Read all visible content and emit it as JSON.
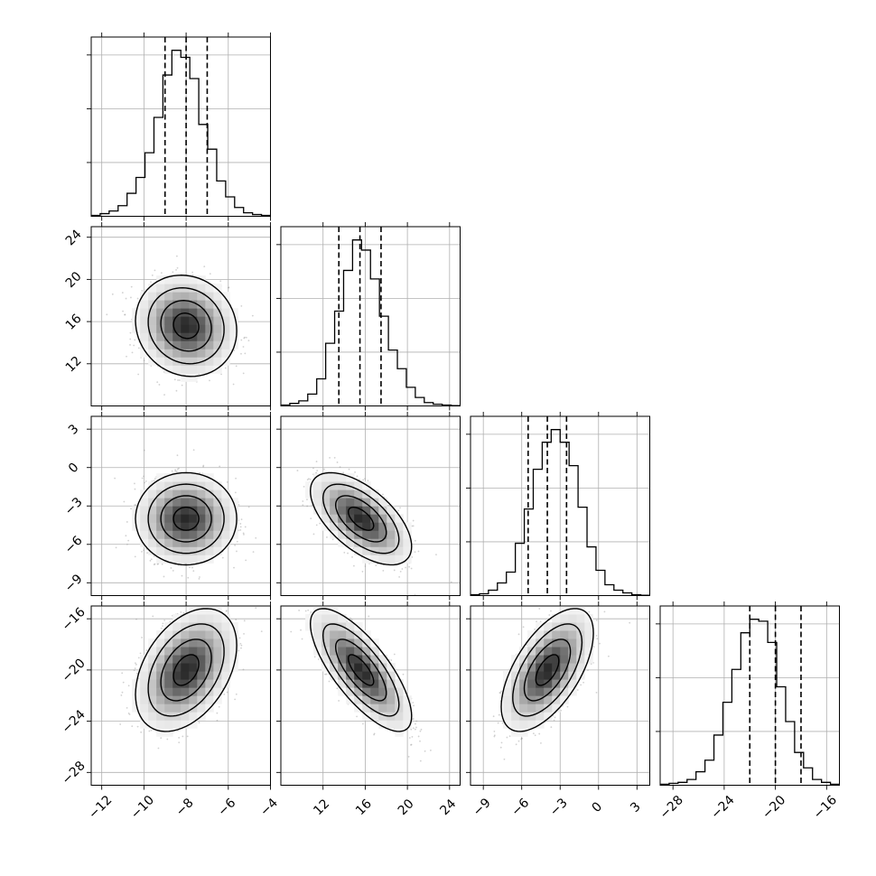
{
  "chart_data": {
    "type": "corner",
    "title": "",
    "grid": true,
    "parameters": [
      {
        "mean": -8.0,
        "sd": 1.0,
        "range": [
          -12.5,
          -4.0
        ],
        "quantiles": [
          -9.0,
          -8.0,
          -7.0
        ],
        "ticks": [
          -12,
          -10,
          -8,
          -6,
          -4
        ],
        "tick_labels": [
          "−12",
          "−10",
          "−8",
          "−6",
          "−4"
        ]
      },
      {
        "mean": 15.6,
        "sd": 2.0,
        "range": [
          8.0,
          25.0
        ],
        "quantiles": [
          13.5,
          15.5,
          17.5
        ],
        "ticks": [
          12,
          16,
          20,
          24
        ],
        "tick_labels": [
          "12",
          "16",
          "20",
          "24"
        ]
      },
      {
        "mean": -4.0,
        "sd": 1.5,
        "range": [
          -10.0,
          4.0
        ],
        "quantiles": [
          -5.5,
          -4.0,
          -2.5
        ],
        "ticks": [
          -9,
          -6,
          -3,
          0,
          3
        ],
        "tick_labels": [
          "−9",
          "−6",
          "−3",
          "0",
          "3"
        ]
      },
      {
        "mean": -20.0,
        "sd": 2.0,
        "range": [
          -29.0,
          -15.0
        ],
        "quantiles": [
          -22.0,
          -20.0,
          -18.0
        ],
        "ticks": [
          -28,
          -24,
          -20,
          -16
        ],
        "tick_labels": [
          "−28",
          "−24",
          "−20",
          "−16"
        ]
      }
    ],
    "correlations": [
      [
        1.0,
        -0.1,
        0.0,
        0.4
      ],
      [
        -0.1,
        1.0,
        -0.6,
        -0.75
      ],
      [
        0.0,
        -0.6,
        1.0,
        0.6
      ],
      [
        0.4,
        -0.75,
        0.6,
        1.0
      ]
    ],
    "histograms": [
      [
        0.005,
        0.015,
        0.03,
        0.06,
        0.13,
        0.22,
        0.36,
        0.56,
        0.8,
        0.94,
        0.9,
        0.78,
        0.52,
        0.38,
        0.2,
        0.11,
        0.05,
        0.02,
        0.01,
        0.005
      ],
      [
        0.005,
        0.015,
        0.03,
        0.07,
        0.16,
        0.37,
        0.56,
        0.8,
        0.98,
        0.92,
        0.75,
        0.53,
        0.33,
        0.22,
        0.11,
        0.05,
        0.02,
        0.01,
        0.005,
        0.002
      ],
      [
        0.005,
        0.01,
        0.03,
        0.07,
        0.13,
        0.29,
        0.48,
        0.7,
        0.85,
        0.92,
        0.85,
        0.72,
        0.49,
        0.27,
        0.14,
        0.06,
        0.03,
        0.015,
        0.005,
        0.002
      ],
      [
        0.005,
        0.01,
        0.015,
        0.03,
        0.07,
        0.13,
        0.26,
        0.43,
        0.6,
        0.79,
        0.86,
        0.85,
        0.74,
        0.51,
        0.33,
        0.17,
        0.09,
        0.03,
        0.015,
        0.005
      ]
    ]
  }
}
